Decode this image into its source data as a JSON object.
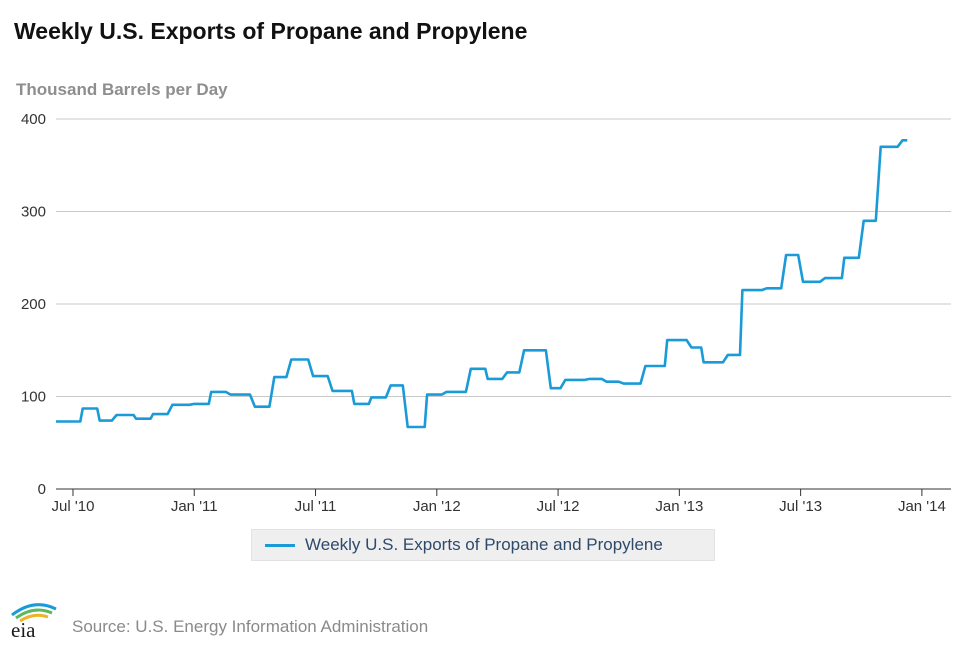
{
  "title": "Weekly U.S. Exports of Propane and Propylene",
  "units": "Thousand Barrels per Day",
  "source": "Source: U.S. Energy Information Administration",
  "logo": {
    "text": "eia"
  },
  "colors": {
    "line": "#1a9bd7",
    "grid": "#c8c8c8",
    "axis": "#333333",
    "tick_text": "#333333"
  },
  "chart_data": {
    "type": "line",
    "title": "Weekly U.S. Exports of Propane and Propylene",
    "ylabel": "Thousand Barrels per Day",
    "xlabel": "",
    "ylim": [
      0,
      400
    ],
    "yticks": [
      0,
      100,
      200,
      300,
      400
    ],
    "xlim": [
      2010.43,
      2014.12
    ],
    "xticks": [
      {
        "value": 2010.5,
        "label": "Jul '10"
      },
      {
        "value": 2011.0,
        "label": "Jan '11"
      },
      {
        "value": 2011.5,
        "label": "Jul '11"
      },
      {
        "value": 2012.0,
        "label": "Jan '12"
      },
      {
        "value": 2012.5,
        "label": "Jul '12"
      },
      {
        "value": 2013.0,
        "label": "Jan '13"
      },
      {
        "value": 2013.5,
        "label": "Jul '13"
      },
      {
        "value": 2014.0,
        "label": "Jan '14"
      }
    ],
    "grid": true,
    "legend_position": "bottom-center",
    "series": [
      {
        "name": "Weekly U.S. Exports of Propane and Propylene",
        "points": [
          [
            2010.43,
            73
          ],
          [
            2010.53,
            73
          ],
          [
            2010.54,
            87
          ],
          [
            2010.6,
            87
          ],
          [
            2010.61,
            74
          ],
          [
            2010.66,
            74
          ],
          [
            2010.68,
            80
          ],
          [
            2010.75,
            80
          ],
          [
            2010.76,
            76
          ],
          [
            2010.82,
            76
          ],
          [
            2010.83,
            81
          ],
          [
            2010.89,
            81
          ],
          [
            2010.91,
            91
          ],
          [
            2010.98,
            91
          ],
          [
            2011.0,
            92
          ],
          [
            2011.06,
            92
          ],
          [
            2011.07,
            105
          ],
          [
            2011.13,
            105
          ],
          [
            2011.15,
            102
          ],
          [
            2011.23,
            102
          ],
          [
            2011.25,
            89
          ],
          [
            2011.31,
            89
          ],
          [
            2011.33,
            121
          ],
          [
            2011.38,
            121
          ],
          [
            2011.4,
            140
          ],
          [
            2011.47,
            140
          ],
          [
            2011.49,
            122
          ],
          [
            2011.55,
            122
          ],
          [
            2011.57,
            106
          ],
          [
            2011.65,
            106
          ],
          [
            2011.66,
            92
          ],
          [
            2011.72,
            92
          ],
          [
            2011.73,
            99
          ],
          [
            2011.79,
            99
          ],
          [
            2011.81,
            112
          ],
          [
            2011.86,
            112
          ],
          [
            2011.88,
            67
          ],
          [
            2011.95,
            67
          ],
          [
            2011.96,
            102
          ],
          [
            2012.02,
            102
          ],
          [
            2012.04,
            105
          ],
          [
            2012.12,
            105
          ],
          [
            2012.14,
            130
          ],
          [
            2012.2,
            130
          ],
          [
            2012.21,
            119
          ],
          [
            2012.27,
            119
          ],
          [
            2012.29,
            126
          ],
          [
            2012.34,
            126
          ],
          [
            2012.36,
            150
          ],
          [
            2012.45,
            150
          ],
          [
            2012.47,
            109
          ],
          [
            2012.51,
            109
          ],
          [
            2012.53,
            118
          ],
          [
            2012.61,
            118
          ],
          [
            2012.63,
            119
          ],
          [
            2012.68,
            119
          ],
          [
            2012.7,
            116
          ],
          [
            2012.75,
            116
          ],
          [
            2012.77,
            114
          ],
          [
            2012.84,
            114
          ],
          [
            2012.86,
            133
          ],
          [
            2012.94,
            133
          ],
          [
            2012.95,
            161
          ],
          [
            2013.03,
            161
          ],
          [
            2013.05,
            153
          ],
          [
            2013.09,
            153
          ],
          [
            2013.1,
            137
          ],
          [
            2013.18,
            137
          ],
          [
            2013.2,
            145
          ],
          [
            2013.25,
            145
          ],
          [
            2013.26,
            215
          ],
          [
            2013.34,
            215
          ],
          [
            2013.36,
            217
          ],
          [
            2013.42,
            217
          ],
          [
            2013.44,
            253
          ],
          [
            2013.49,
            253
          ],
          [
            2013.51,
            224
          ],
          [
            2013.58,
            224
          ],
          [
            2013.6,
            228
          ],
          [
            2013.67,
            228
          ],
          [
            2013.68,
            250
          ],
          [
            2013.74,
            250
          ],
          [
            2013.76,
            290
          ],
          [
            2013.81,
            290
          ],
          [
            2013.83,
            370
          ],
          [
            2013.9,
            370
          ],
          [
            2013.92,
            377
          ],
          [
            2013.94,
            377
          ]
        ]
      }
    ]
  }
}
